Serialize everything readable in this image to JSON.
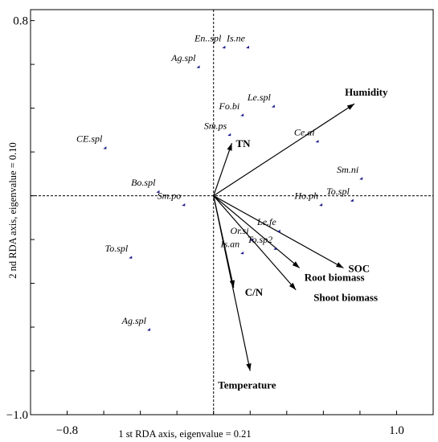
{
  "chart_data": {
    "type": "scatter",
    "subtype": "rda-biplot",
    "xlabel": "1 st RDA axis, eigenvalue = 0.21",
    "ylabel": "2 nd RDA axis, eigenvalue = 0.10",
    "xlim": [
      -1.0,
      1.2
    ],
    "ylim": [
      -1.0,
      0.85
    ],
    "x_tick_labels": [
      {
        "value": -0.8,
        "label": "−0.8"
      },
      {
        "value": 1.0,
        "label": "1.0"
      }
    ],
    "y_tick_labels": [
      {
        "value": 0.8,
        "label": "0.8"
      },
      {
        "value": -1.0,
        "label": "−1.0"
      }
    ],
    "x_ticks": [
      -0.6,
      -0.4,
      -0.2,
      0.0,
      0.2,
      0.4,
      0.6,
      0.8
    ],
    "y_ticks": [
      0.6,
      0.4,
      0.2,
      0.0,
      -0.2,
      -0.4,
      -0.6,
      -0.8
    ],
    "origin_lines": "dashed",
    "grid": false,
    "species": [
      {
        "name": "En..spl",
        "x": 0.06,
        "y": 0.68
      },
      {
        "name": "Is.ne",
        "x": 0.19,
        "y": 0.68
      },
      {
        "name": "Ag.spl",
        "x": -0.08,
        "y": 0.59
      },
      {
        "name": "Le.spl",
        "x": 0.33,
        "y": 0.41
      },
      {
        "name": "Fo.bi",
        "x": 0.16,
        "y": 0.37
      },
      {
        "name": "Sm.ps",
        "x": 0.09,
        "y": 0.28
      },
      {
        "name": "Ce.ai",
        "x": 0.57,
        "y": 0.25
      },
      {
        "name": "CE.spl",
        "x": -0.59,
        "y": 0.22
      },
      {
        "name": "Sm.ni",
        "x": 0.81,
        "y": 0.08
      },
      {
        "name": "Bo.spl",
        "x": -0.3,
        "y": 0.02
      },
      {
        "name": "Sm.po",
        "x": -0.16,
        "y": -0.04
      },
      {
        "name": "Ho.ph",
        "x": 0.59,
        "y": -0.04
      },
      {
        "name": "To.spl",
        "x": 0.76,
        "y": -0.02
      },
      {
        "name": "Le.fe",
        "x": 0.36,
        "y": -0.16
      },
      {
        "name": "Or.si",
        "x": 0.21,
        "y": -0.2
      },
      {
        "name": "To.sp2",
        "x": 0.34,
        "y": -0.24
      },
      {
        "name": "Is.an",
        "x": 0.16,
        "y": -0.26
      },
      {
        "name": "To.spl",
        "x": -0.45,
        "y": -0.28
      },
      {
        "name": "Ag.spl",
        "x": -0.35,
        "y": -0.61
      }
    ],
    "environmental_variables": [
      {
        "name": "Humidity",
        "x": 0.77,
        "y": 0.42
      },
      {
        "name": "TN",
        "x": 0.1,
        "y": 0.24
      },
      {
        "name": "SOC",
        "x": 0.71,
        "y": -0.33
      },
      {
        "name": "Root biomass",
        "x": 0.47,
        "y": -0.33
      },
      {
        "name": "Shoot biomass",
        "x": 0.45,
        "y": -0.43
      },
      {
        "name": "C/N",
        "x": 0.11,
        "y": -0.42
      },
      {
        "name": "Temperature",
        "x": 0.2,
        "y": -0.8
      }
    ]
  }
}
